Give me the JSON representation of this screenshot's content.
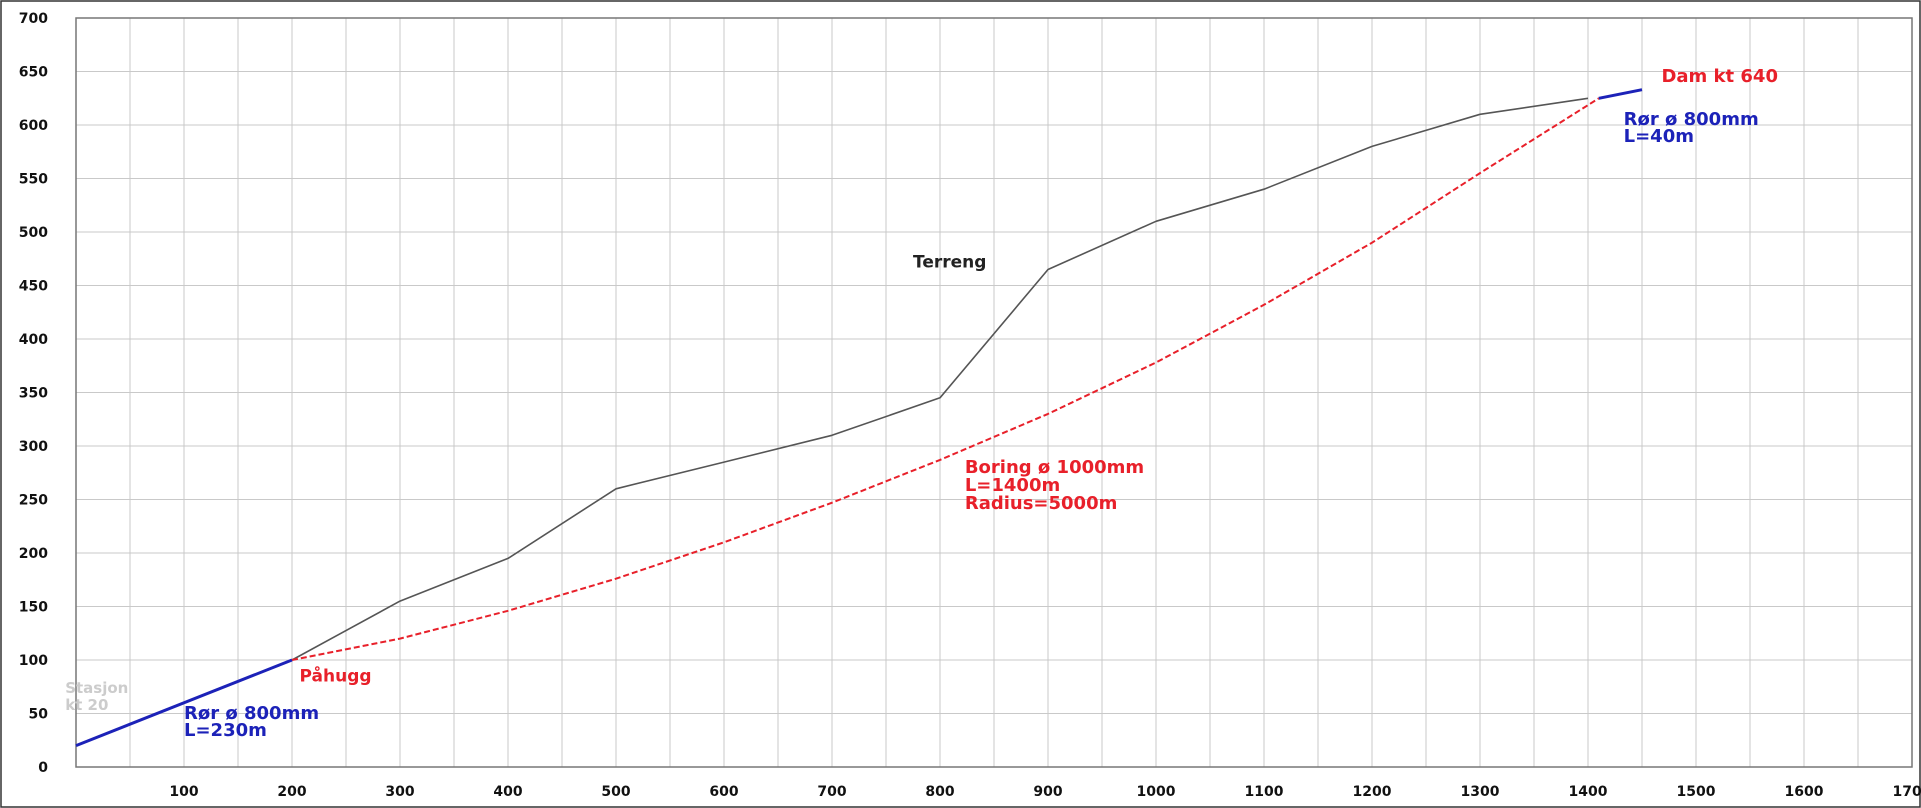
{
  "chart_data": {
    "type": "line",
    "title": "",
    "xlabel": "",
    "ylabel": "",
    "xlim": [
      0,
      1700
    ],
    "ylim": [
      0,
      700
    ],
    "grid": true,
    "x_ticks": [
      100,
      200,
      300,
      400,
      500,
      600,
      700,
      800,
      900,
      1000,
      1100,
      1200,
      1300,
      1400,
      1500,
      1600,
      1700
    ],
    "x_minor_step": 50,
    "y_ticks": [
      0,
      50,
      100,
      150,
      200,
      250,
      300,
      350,
      400,
      450,
      500,
      550,
      600,
      650,
      700
    ],
    "series": [
      {
        "name": "Terreng",
        "color": "#555555",
        "style": "solid",
        "points": [
          [
            200,
            100
          ],
          [
            300,
            155
          ],
          [
            400,
            195
          ],
          [
            500,
            260
          ],
          [
            600,
            285
          ],
          [
            700,
            310
          ],
          [
            800,
            345
          ],
          [
            900,
            465
          ],
          [
            1000,
            510
          ],
          [
            1100,
            540
          ],
          [
            1200,
            580
          ],
          [
            1300,
            610
          ],
          [
            1400,
            625
          ]
        ]
      },
      {
        "color": "#e8202a",
        "style": "dashed",
        "points": [
          [
            200,
            100
          ],
          [
            300,
            120
          ],
          [
            400,
            146
          ],
          [
            500,
            176
          ],
          [
            600,
            210
          ],
          [
            700,
            247
          ],
          [
            800,
            287
          ],
          [
            900,
            330
          ],
          [
            1000,
            378
          ],
          [
            1100,
            432
          ],
          [
            1200,
            490
          ],
          [
            1300,
            555
          ],
          [
            1410,
            625
          ]
        ]
      },
      {
        "color": "#1c22b8",
        "style": "solid",
        "points": [
          [
            0,
            20
          ],
          [
            200,
            100
          ]
        ]
      },
      {
        "color": "#1c22b8",
        "style": "solid",
        "points": [
          [
            1410,
            625
          ],
          [
            1450,
            633
          ]
        ]
      }
    ],
    "annotations": [
      {
        "key": "terreng",
        "lines": [
          "Terreng"
        ],
        "x": 775,
        "y": 467,
        "color": "#222222"
      },
      {
        "key": "dam",
        "lines": [
          "Dam kt 640"
        ],
        "x": 1468,
        "y": 640,
        "color": "#e8202a"
      },
      {
        "key": "ror-top",
        "lines": [
          "Rør ø 800mm",
          "L=40m"
        ],
        "x": 1433,
        "y": 600,
        "color": "#1c22b8"
      },
      {
        "key": "boring",
        "lines": [
          "Boring ø 1000mm",
          "L=1400m",
          "Radius=5000m"
        ],
        "x": 823,
        "y": 275,
        "color": "#e8202a"
      },
      {
        "key": "pahugg",
        "lines": [
          "Påhugg"
        ],
        "x": 207,
        "y": 80,
        "color": "#e8202a"
      },
      {
        "key": "stasjon",
        "lines": [
          "Stasjon",
          "kt 20"
        ],
        "x": -10,
        "y": 69,
        "color": "#cccccc"
      },
      {
        "key": "ror-bottom",
        "lines": [
          "Rør ø 800mm",
          "L=230m"
        ],
        "x": 100,
        "y": 45,
        "color": "#1c22b8"
      }
    ]
  }
}
